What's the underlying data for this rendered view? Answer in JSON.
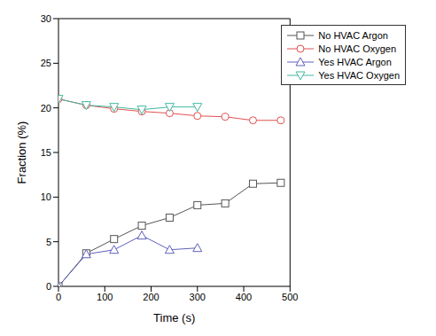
{
  "chart_data": {
    "type": "line",
    "x_label": "Time (s)",
    "y_label": "Fraction (%)",
    "xlim": [
      0,
      500
    ],
    "xticks": [
      0,
      100,
      200,
      300,
      400,
      500
    ],
    "ylim": [
      0,
      30
    ],
    "yticks": [
      0,
      5,
      10,
      15,
      20,
      25,
      30
    ],
    "grid": false,
    "legend": "top-right",
    "series": [
      {
        "name": "No HVAC Argon",
        "color": "#555555",
        "marker": "square",
        "x": [
          0,
          60,
          120,
          180,
          240,
          300,
          360,
          420,
          480
        ],
        "values": [
          0,
          3.7,
          5.3,
          6.8,
          7.7,
          9.1,
          9.3,
          11.5,
          11.6
        ]
      },
      {
        "name": "No HVAC Oxygen",
        "color": "#e05050",
        "marker": "circle",
        "x": [
          0,
          60,
          120,
          180,
          240,
          300,
          360,
          420,
          480
        ],
        "values": [
          21,
          20.3,
          19.9,
          19.6,
          19.4,
          19.1,
          19.0,
          18.6,
          18.6
        ]
      },
      {
        "name": "Yes HVAC Argon",
        "color": "#6060c0",
        "marker": "triangle-up",
        "x": [
          0,
          60,
          120,
          180,
          240,
          300
        ],
        "values": [
          0,
          3.6,
          4.1,
          5.7,
          4.1,
          4.3
        ]
      },
      {
        "name": "Yes HVAC Oxygen",
        "color": "#40b8a0",
        "marker": "triangle-down",
        "x": [
          0,
          60,
          120,
          180,
          240,
          300
        ],
        "values": [
          21,
          20.3,
          20.1,
          19.8,
          20.1,
          20.1
        ]
      }
    ]
  }
}
